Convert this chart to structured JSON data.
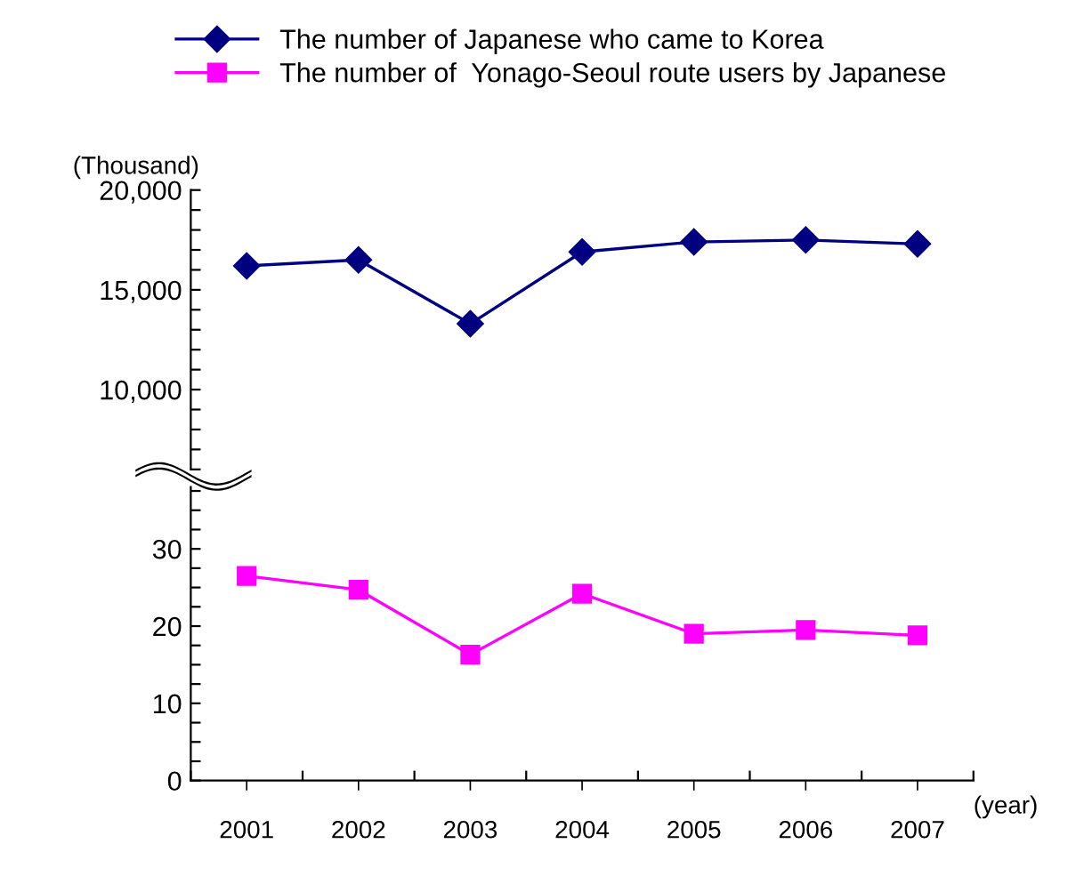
{
  "chart_data": [
    {
      "type": "line",
      "ylabel": "(Thousand)",
      "categories": [
        "2001",
        "2002",
        "2003",
        "2004",
        "2005",
        "2006",
        "2007"
      ],
      "series": [
        {
          "name": "The number of Japanese who came to Korea",
          "color": "#000080",
          "values": [
            16200,
            16500,
            13300,
            16900,
            17400,
            17500,
            17300
          ],
          "marker": "diamond"
        }
      ],
      "ylim": [
        6000,
        20000
      ],
      "yticks": [
        {
          "value": 6000,
          "label": null
        },
        {
          "value": 7000,
          "label": null
        },
        {
          "value": 8000,
          "label": null
        },
        {
          "value": 9000,
          "label": null
        },
        {
          "value": 10000,
          "label": "10,000"
        },
        {
          "value": 11000,
          "label": null
        },
        {
          "value": 12000,
          "label": null
        },
        {
          "value": 13000,
          "label": null
        },
        {
          "value": 14000,
          "label": null
        },
        {
          "value": 15000,
          "label": "15,000"
        },
        {
          "value": 16000,
          "label": null
        },
        {
          "value": 17000,
          "label": null
        },
        {
          "value": 18000,
          "label": null
        },
        {
          "value": 19000,
          "label": null
        },
        {
          "value": 20000,
          "label": "20,000"
        }
      ],
      "tick_labels": "y",
      "legend": "top",
      "grid": false,
      "line_style": "solid"
    },
    {
      "type": "line",
      "xlabel": "(year)",
      "categories": [
        "2001",
        "2002",
        "2003",
        "2004",
        "2005",
        "2006",
        "2007"
      ],
      "series": [
        {
          "name": "The number of  Yonago-Seoul route users by Japanese",
          "color": "#ff00ff",
          "values": [
            26.5,
            24.7,
            16.3,
            24.2,
            19.0,
            19.5,
            18.8
          ],
          "marker": "square"
        }
      ],
      "ylim": [
        0,
        38
      ],
      "yticks": [
        0,
        {
          "value": 2.5,
          "label": null
        },
        {
          "value": 5,
          "label": null
        },
        {
          "value": 7.5,
          "label": null
        },
        10,
        {
          "value": 12.5,
          "label": null
        },
        {
          "value": 15,
          "label": null
        },
        {
          "value": 17.5,
          "label": null
        },
        20,
        {
          "value": 22.5,
          "label": null
        },
        {
          "value": 25,
          "label": null
        },
        {
          "value": 27.5,
          "label": null
        },
        30,
        {
          "value": 32.5,
          "label": null
        },
        {
          "value": 35,
          "label": null
        },
        {
          "value": 37.5,
          "label": null
        }
      ],
      "legend": "top",
      "grid": false,
      "line_style": "solid"
    }
  ]
}
